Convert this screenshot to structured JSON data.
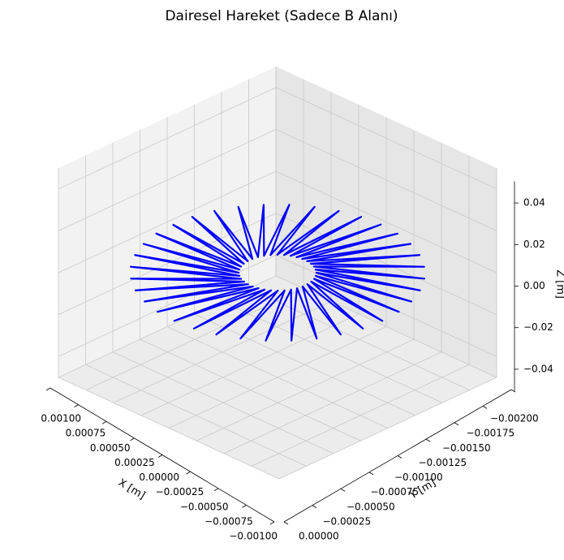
{
  "chart_data": {
    "type": "line3d",
    "title": "Dairesel Hareket (Sadece B Alanı)",
    "xlabel": "X [m]",
    "ylabel": "Y [m]",
    "zlabel": "Z [m]",
    "xlim": [
      -0.001,
      0.001
    ],
    "ylim": [
      -0.002,
      0
    ],
    "zlim": [
      -0.05,
      0.05
    ],
    "xticks": [
      {
        "value": 0.001,
        "label": "0.00100"
      },
      0.00075,
      {
        "value": 0.0005,
        "label": "0.00050"
      },
      0.00025,
      {
        "value": 0,
        "label": "0.00000"
      },
      {
        "value": -0.00025,
        "label": "−0.00025"
      },
      {
        "value": -0.0005,
        "label": "−0.00050"
      },
      {
        "value": -0.00075,
        "label": "−0.00075"
      },
      {
        "value": -0.001,
        "label": "−0.00100"
      }
    ],
    "yticks": [
      {
        "value": 0,
        "label": "0.00000"
      },
      {
        "value": -0.00025,
        "label": "−0.00025"
      },
      {
        "value": -0.0005,
        "label": "−0.00050"
      },
      {
        "value": -0.00075,
        "label": "−0.00075"
      },
      {
        "value": -0.001,
        "label": "−0.00100"
      },
      {
        "value": -0.00125,
        "label": "−0.00125"
      },
      {
        "value": -0.0015,
        "label": "−0.00150"
      },
      {
        "value": -0.00175,
        "label": "−0.00175"
      },
      {
        "value": -0.002,
        "label": "−0.00200"
      }
    ],
    "zticks": [
      {
        "value": -0.04,
        "label": "−0.04"
      },
      {
        "value": -0.02,
        "label": "−0.02"
      },
      {
        "value": 0,
        "label": "0.00"
      },
      0.02,
      0.04
    ],
    "grid": true,
    "series": [
      {
        "color": "#0000ff",
        "x": [
          0.00095,
          0.000227,
          0.000936,
          0.000205,
          0.000893,
          0.000177,
          0.000823,
          0.000143,
          0.000728,
          0.000106,
          0.000611,
          6.5e-05,
          0.000475,
          2.2e-05,
          0.000325,
          -2.2e-05,
          0.000165,
          -6.5e-05,
          0,
          -0.000106,
          -0.000165,
          -0.000143,
          -0.000325,
          -0.000177,
          -0.000475,
          -0.000205,
          -0.000611,
          -0.000227,
          -0.000728,
          -0.000241,
          -0.000823,
          -0.000249,
          -0.000893,
          -0.000249,
          -0.000936,
          -0.000241,
          -0.00095,
          -0.000227,
          -0.000936,
          -0.000205,
          -0.000893,
          -0.000177,
          -0.000823,
          -0.000143,
          -0.000728,
          -0.000106,
          -0.000611,
          -6.5e-05,
          -0.000475,
          -2.2e-05,
          -0.000325,
          2.2e-05,
          -0.000165,
          6.5e-05,
          0,
          0.000106,
          0.000165,
          0.000143,
          0.000325,
          0.000177,
          0.000475,
          0.000205,
          0.000611,
          0.000227,
          0.000728,
          0.000241,
          0.000823,
          0.000249,
          0.000893,
          0.000249,
          0.000936,
          0.000241,
          0.00095
        ],
        "y": [
          -0.001,
          -0.000894,
          -0.000835,
          -0.000857,
          -0.000675,
          -0.000823,
          -0.000525,
          -0.000795,
          -0.000389,
          -0.000773,
          -0.000272,
          -0.000759,
          -0.000177,
          -0.000751,
          -0.000107,
          -0.000751,
          -6.4e-05,
          -0.000759,
          -5e-05,
          -0.000773,
          -6.4e-05,
          -0.000795,
          -0.000107,
          -0.000823,
          -0.000177,
          -0.000857,
          -0.000272,
          -0.000894,
          -0.000389,
          -0.000935,
          -0.000525,
          -0.000978,
          -0.000675,
          -0.001022,
          -0.000835,
          -0.001065,
          -0.001,
          -0.001106,
          -0.001165,
          -0.001143,
          -0.001325,
          -0.001177,
          -0.001475,
          -0.001205,
          -0.001611,
          -0.001227,
          -0.001728,
          -0.001241,
          -0.001823,
          -0.001249,
          -0.001893,
          -0.001249,
          -0.001936,
          -0.001241,
          -0.00195,
          -0.001227,
          -0.001936,
          -0.001205,
          -0.001893,
          -0.001177,
          -0.001823,
          -0.001143,
          -0.001728,
          -0.001106,
          -0.001611,
          -0.001065,
          -0.001475,
          -0.001022,
          -0.001325,
          -0.000978,
          -0.001165,
          -0.000935,
          -0.001
        ],
        "z": [
          0,
          0,
          0,
          0,
          0,
          0,
          0,
          0,
          0,
          0,
          0,
          0,
          0,
          0,
          0,
          0,
          0,
          0,
          0,
          0,
          0,
          0,
          0,
          0,
          0,
          0,
          0,
          0,
          0,
          0,
          0,
          0,
          0,
          0,
          0,
          0,
          0,
          0,
          0,
          0,
          0,
          0,
          0,
          0,
          0,
          0,
          0,
          0,
          0,
          0,
          0,
          0,
          0,
          0,
          0,
          0,
          0,
          0,
          0,
          0,
          0,
          0,
          0,
          0,
          0,
          0,
          0,
          0,
          0,
          0,
          0,
          0,
          0
        ]
      }
    ]
  }
}
